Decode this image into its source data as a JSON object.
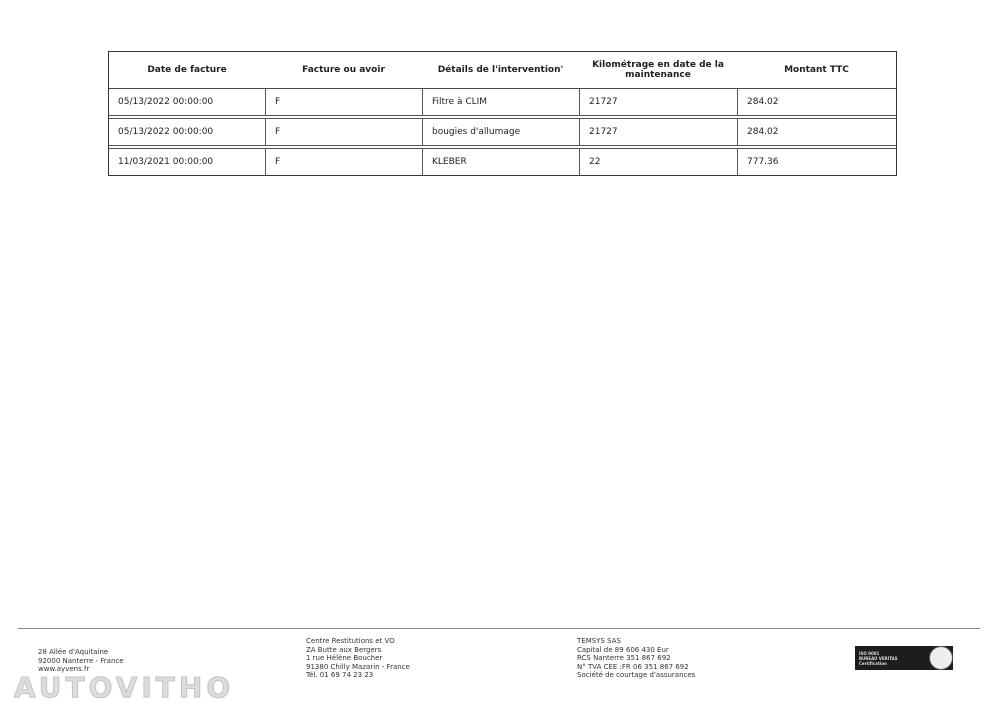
{
  "table": {
    "headers": [
      "Date de facture",
      "Facture ou avoir",
      "Détails de l'intervention'",
      "Kilométrage en date de la maintenance",
      "Montant TTC"
    ],
    "rows": [
      [
        "05/13/2022 00:00:00",
        "F",
        "Filtre à  CLIM",
        "21727",
        "284.02"
      ],
      [
        "05/13/2022 00:00:00",
        "F",
        "bougies d'allumage",
        "21727",
        "284.02"
      ],
      [
        "11/03/2021 00:00:00",
        "F",
        "KLEBER",
        "22",
        "777.36"
      ]
    ]
  },
  "footer": {
    "left": [
      "28 Allée d'Aquitaine",
      "92000 Nanterre - France",
      "www.ayvens.fr"
    ],
    "center": [
      "Centre Restitutions et VO",
      "ZA Butte aux Bergers",
      "1 rue Hélène Boucher",
      "91380 Chilly Mazarin - France",
      "Tél. 01 69 74 23 23"
    ],
    "right": [
      "TEMSYS SAS",
      "Capital de 89 606 430 Eur",
      "RCS Nanterre 351 867 692",
      "N° TVA CEE :FR 06 351 867 692",
      "Société de courtage d'assurances"
    ],
    "badge": [
      "ISO 9001",
      "BUREAU VERITAS",
      "Certification"
    ],
    "watermark": "AUTOVITHO"
  }
}
